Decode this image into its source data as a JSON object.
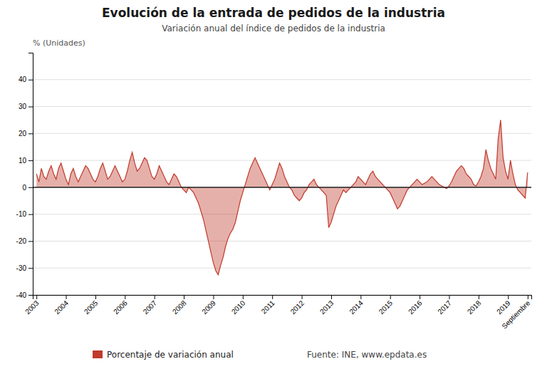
{
  "chart_data": {
    "type": "area",
    "title": "Evolución de la entrada de pedidos de la industria",
    "subtitle": "Variación anual del índice de pedidos de la industria",
    "ylabel": "% (Unidades)",
    "annotations": [
      "Fuente: INE, www.epdata.es"
    ],
    "ylim": [
      -40,
      50
    ],
    "yticks": [
      -40,
      -30,
      -20,
      -10,
      0,
      10,
      20,
      30,
      40
    ],
    "grid": true,
    "legend": "bottom",
    "categories": [
      "2003",
      null,
      null,
      null,
      null,
      null,
      null,
      null,
      null,
      null,
      null,
      null,
      "2004",
      null,
      null,
      null,
      null,
      null,
      null,
      null,
      null,
      null,
      null,
      null,
      "2005",
      null,
      null,
      null,
      null,
      null,
      null,
      null,
      null,
      null,
      null,
      null,
      "2006",
      null,
      null,
      null,
      null,
      null,
      null,
      null,
      null,
      null,
      null,
      null,
      "2007",
      null,
      null,
      null,
      null,
      null,
      null,
      null,
      null,
      null,
      null,
      null,
      "2008",
      null,
      null,
      null,
      null,
      null,
      null,
      null,
      null,
      null,
      null,
      null,
      "2009",
      null,
      null,
      null,
      null,
      null,
      null,
      null,
      null,
      null,
      null,
      null,
      "2010",
      null,
      null,
      null,
      null,
      null,
      null,
      null,
      null,
      null,
      null,
      null,
      "2011",
      null,
      null,
      null,
      null,
      null,
      null,
      null,
      null,
      null,
      null,
      null,
      "2012",
      null,
      null,
      null,
      null,
      null,
      null,
      null,
      null,
      null,
      null,
      null,
      "2013",
      null,
      null,
      null,
      null,
      null,
      null,
      null,
      null,
      null,
      null,
      null,
      "2014",
      null,
      null,
      null,
      null,
      null,
      null,
      null,
      null,
      null,
      null,
      null,
      "2015",
      null,
      null,
      null,
      null,
      null,
      null,
      null,
      null,
      null,
      null,
      null,
      "2016",
      null,
      null,
      null,
      null,
      null,
      null,
      null,
      null,
      null,
      null,
      null,
      "2017",
      null,
      null,
      null,
      null,
      null,
      null,
      null,
      null,
      null,
      null,
      null,
      "2018",
      null,
      null,
      null,
      null,
      null,
      null,
      null,
      null,
      null,
      null,
      null,
      "2019",
      null,
      null,
      null,
      null,
      null,
      null,
      null,
      "Septiembre"
    ],
    "series": [
      {
        "name": "Porcentaje de variación anual",
        "color": "#c0392b",
        "values": [
          5.0,
          2.0,
          7.0,
          4.0,
          3.0,
          6.0,
          8.0,
          5.0,
          3.0,
          7.0,
          9.0,
          6.0,
          3.0,
          1.0,
          5.0,
          7.0,
          4.0,
          2.0,
          4.0,
          6.0,
          8.0,
          7.0,
          5.0,
          3.0,
          2.0,
          4.0,
          7.0,
          9.0,
          6.0,
          3.0,
          4.0,
          6.0,
          8.0,
          6.0,
          4.0,
          2.0,
          3.0,
          6.0,
          10.0,
          13.0,
          9.0,
          6.0,
          7.0,
          9.0,
          11.0,
          10.0,
          7.0,
          4.0,
          3.0,
          5.0,
          8.0,
          6.0,
          4.0,
          2.0,
          1.0,
          3.0,
          5.0,
          4.0,
          2.0,
          0.0,
          -1.0,
          -2.0,
          0.0,
          -1.0,
          -2.0,
          -4.0,
          -6.0,
          -9.0,
          -12.0,
          -16.0,
          -20.0,
          -24.0,
          -28.0,
          -31.0,
          -32.5,
          -29.0,
          -26.0,
          -22.0,
          -19.0,
          -17.0,
          -15.5,
          -13.0,
          -9.0,
          -5.0,
          -2.0,
          1.0,
          4.0,
          7.0,
          9.0,
          11.0,
          9.0,
          7.0,
          5.0,
          3.0,
          1.0,
          -1.0,
          1.0,
          3.0,
          6.0,
          9.0,
          7.0,
          4.0,
          2.0,
          0.0,
          -1.0,
          -3.0,
          -4.0,
          -5.0,
          -4.0,
          -2.0,
          -1.0,
          1.0,
          2.0,
          3.0,
          1.0,
          0.0,
          -1.0,
          -2.0,
          -3.0,
          -15.0,
          -13.0,
          -10.0,
          -7.0,
          -5.0,
          -3.0,
          -1.0,
          -2.0,
          -1.0,
          0.0,
          1.0,
          2.0,
          4.0,
          3.0,
          2.0,
          1.0,
          3.0,
          5.0,
          6.0,
          4.0,
          3.0,
          2.0,
          1.0,
          0.0,
          -1.0,
          -2.0,
          -4.0,
          -6.0,
          -8.0,
          -7.0,
          -5.0,
          -3.0,
          -1.0,
          0.0,
          1.0,
          2.0,
          3.0,
          2.0,
          1.0,
          1.5,
          2.0,
          3.0,
          4.0,
          3.0,
          2.0,
          1.0,
          0.5,
          0.0,
          -0.5,
          0.5,
          2.0,
          4.0,
          6.0,
          7.0,
          8.0,
          7.0,
          5.0,
          4.0,
          3.0,
          1.0,
          0.5,
          2.0,
          4.0,
          7.0,
          14.0,
          10.0,
          7.0,
          5.0,
          3.0,
          18.0,
          25.0,
          11.0,
          6.0,
          3.0,
          10.0,
          5.0,
          1.0,
          -1.0,
          -2.0,
          -3.0,
          -4.0,
          5.5
        ]
      }
    ]
  }
}
